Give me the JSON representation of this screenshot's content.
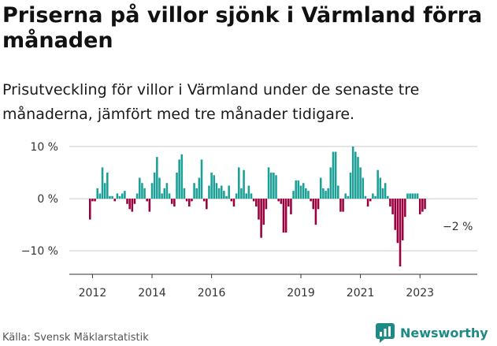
{
  "title": "Priserna på villor sjönk i Värmland förra månaden",
  "subtitle": "Prisutveckling för villor i Värmland under de senaste tre månaderna, jämfört med tre månader tidigare.",
  "source": "Källa: Svensk Mäklarstatistik",
  "brand": "Newsworthy",
  "colors": {
    "positive": "#1aa096",
    "negative": "#99003d",
    "grid": "#cccccc",
    "brand": "#1d8a86"
  },
  "chart_data": {
    "type": "bar",
    "ylim": [
      -14.5,
      11.5
    ],
    "y_ticks": [
      10,
      0,
      -10
    ],
    "y_tick_labels": [
      "10 %",
      "0 %",
      "−10 %"
    ],
    "x_tick_labels": [
      "2012",
      "2014",
      "2016",
      "2019",
      "2021",
      "2023"
    ],
    "x_tick_months": [
      "2012-01",
      "2014-01",
      "2016-01",
      "2019-01",
      "2021-01",
      "2023-01"
    ],
    "first_month": "2011-12",
    "annotation": "−2 %",
    "values": [
      -4,
      -0.5,
      -0.5,
      2,
      1,
      6,
      3,
      5,
      0.5,
      0.5,
      -0.5,
      1,
      0.5,
      1,
      1.5,
      -1,
      -2,
      -2.5,
      -1,
      1,
      4,
      3,
      2,
      -0.5,
      -2.5,
      3,
      5,
      8,
      4,
      1,
      2,
      3,
      1,
      -1,
      -1.5,
      5,
      7.5,
      8.5,
      2,
      -0.5,
      -1.5,
      -0.5,
      3,
      2,
      4,
      7.5,
      -0.5,
      -2,
      2.5,
      5,
      4.5,
      3,
      2,
      2.5,
      1.5,
      0.5,
      2.5,
      -0.5,
      -1.5,
      1,
      6,
      2,
      5.5,
      1,
      2.5,
      1,
      -0.5,
      -1.5,
      -4,
      -7.5,
      -5,
      -2,
      6,
      5,
      5,
      4.5,
      -0.5,
      -1,
      -6.5,
      -6.5,
      -1.5,
      -3,
      1.5,
      3.5,
      3.5,
      2.5,
      3,
      2,
      1.5,
      -0.5,
      -2,
      -5,
      -2,
      4,
      2,
      1.5,
      2,
      6,
      9,
      9,
      2.5,
      -2.5,
      -2.5,
      1,
      0.5,
      5,
      10,
      9,
      8,
      6,
      4,
      0.5,
      -1.5,
      -0.5,
      1,
      0.5,
      5.5,
      4,
      2,
      3,
      0.5,
      -1.5,
      -3,
      -6,
      -8.5,
      -13,
      -8,
      -3.5,
      1,
      1,
      1,
      1,
      1,
      -3,
      -2.5,
      -2
    ]
  }
}
